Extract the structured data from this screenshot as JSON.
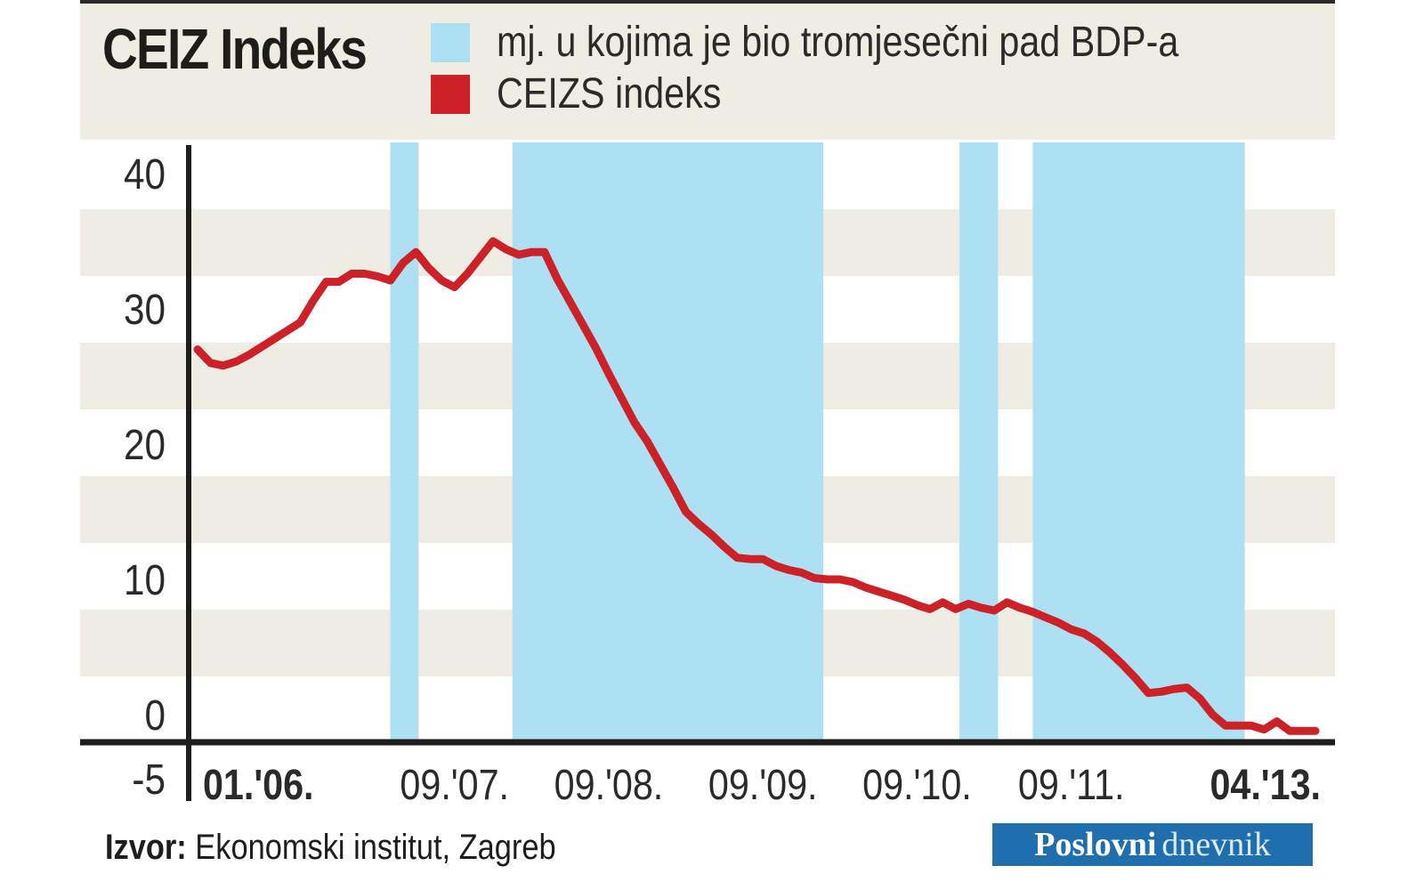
{
  "colors": {
    "highlight": "#ade0f3",
    "line": "#cc2127",
    "band_light": "#ffffff",
    "band_dark": "#efede3",
    "axis": "#1d1d1b",
    "logo_bg": "#1f6fae"
  },
  "header": {
    "title": "CEIZ Indeks",
    "legend": [
      {
        "label": "mj. u kojima je bio tromjesečni pad BDP-a",
        "color": "#ade0f3"
      },
      {
        "label": "CEIZS indeks",
        "color": "#cc2127"
      }
    ]
  },
  "chart_data": {
    "type": "line",
    "title": "CEIZ Indeks",
    "ylim": [
      -5,
      42
    ],
    "y_ticks": [
      {
        "value": 40,
        "label": "40"
      },
      {
        "value": 30,
        "label": "30"
      },
      {
        "value": 20,
        "label": "20"
      },
      {
        "value": 10,
        "label": "10"
      },
      {
        "value": 0,
        "label": "0"
      },
      {
        "value": -5,
        "label": "-5"
      }
    ],
    "x_ticks": [
      {
        "index": 0,
        "label": "01.'06.",
        "bold": true
      },
      {
        "index": 20,
        "label": "09.'07.",
        "bold": false
      },
      {
        "index": 32,
        "label": "09.'08.",
        "bold": false
      },
      {
        "index": 44,
        "label": "09.'09.",
        "bold": false
      },
      {
        "index": 56,
        "label": "09.'10.",
        "bold": false
      },
      {
        "index": 68,
        "label": "09.'11.",
        "bold": false
      },
      {
        "index": 87,
        "label": "04.'13.",
        "bold": true
      }
    ],
    "grid": true,
    "legend_position": "top",
    "highlight_periods": [
      {
        "start": 15,
        "end": 17.2
      },
      {
        "start": 24.5,
        "end": 48.7
      },
      {
        "start": 59.3,
        "end": 62.3
      },
      {
        "start": 65,
        "end": 81.5
      }
    ],
    "series": [
      {
        "name": "CEIZS indeks",
        "points": [
          [
            0,
            27
          ],
          [
            1,
            26
          ],
          [
            2,
            25.8
          ],
          [
            3,
            26.1
          ],
          [
            4,
            26.6
          ],
          [
            5,
            27.2
          ],
          [
            6,
            27.8
          ],
          [
            7,
            28.4
          ],
          [
            8,
            29
          ],
          [
            9,
            30.6
          ],
          [
            10,
            32
          ],
          [
            11,
            32
          ],
          [
            12,
            32.6
          ],
          [
            13,
            32.6
          ],
          [
            14,
            32.4
          ],
          [
            15,
            32.1
          ],
          [
            16,
            33.4
          ],
          [
            17,
            34.2
          ],
          [
            18,
            33
          ],
          [
            19,
            32.1
          ],
          [
            20,
            31.6
          ],
          [
            21,
            32.6
          ],
          [
            22,
            33.8
          ],
          [
            23,
            35
          ],
          [
            24,
            34.4
          ],
          [
            25,
            34
          ],
          [
            26,
            34.2
          ],
          [
            27,
            34.2
          ],
          [
            28,
            32.2
          ],
          [
            29,
            30.5
          ],
          [
            30,
            28.8
          ],
          [
            31,
            27.1
          ],
          [
            32,
            25.2
          ],
          [
            33,
            23.4
          ],
          [
            34,
            21.6
          ],
          [
            35,
            20.2
          ],
          [
            36,
            18.5
          ],
          [
            37,
            16.8
          ],
          [
            38,
            15
          ],
          [
            39,
            14.1
          ],
          [
            40,
            13.3
          ],
          [
            41,
            12.4
          ],
          [
            42,
            11.6
          ],
          [
            43,
            11.5
          ],
          [
            44,
            11.5
          ],
          [
            45,
            11
          ],
          [
            46,
            10.7
          ],
          [
            47,
            10.5
          ],
          [
            48,
            10.1
          ],
          [
            49,
            10
          ],
          [
            50,
            10
          ],
          [
            51,
            9.8
          ],
          [
            52,
            9.4
          ],
          [
            53,
            9.1
          ],
          [
            54,
            8.8
          ],
          [
            55,
            8.5
          ],
          [
            56,
            8.1
          ],
          [
            57,
            7.8
          ],
          [
            58,
            8.3
          ],
          [
            59,
            7.8
          ],
          [
            60,
            8.2
          ],
          [
            61,
            7.9
          ],
          [
            62,
            7.7
          ],
          [
            63,
            8.3
          ],
          [
            64,
            7.9
          ],
          [
            65,
            7.6
          ],
          [
            66,
            7.2
          ],
          [
            67,
            6.8
          ],
          [
            68,
            6.3
          ],
          [
            69,
            6
          ],
          [
            70,
            5.4
          ],
          [
            71,
            4.6
          ],
          [
            72,
            3.7
          ],
          [
            73,
            2.7
          ],
          [
            74,
            1.6
          ],
          [
            75,
            1.7
          ],
          [
            76,
            1.9
          ],
          [
            77,
            2
          ],
          [
            78,
            1.2
          ],
          [
            79,
            0
          ],
          [
            80,
            -0.8
          ],
          [
            81,
            -0.8
          ],
          [
            82,
            -0.8
          ],
          [
            83,
            -1.1
          ],
          [
            84,
            -0.5
          ],
          [
            85,
            -1.2
          ],
          [
            86,
            -1.2
          ],
          [
            87,
            -1.2
          ]
        ]
      }
    ]
  },
  "footer": {
    "source_label": "Izvor:",
    "source_text": " Ekonomski institut, Zagreb"
  },
  "logo": {
    "word1": "Poslovni",
    "word2": "dnevnik"
  }
}
